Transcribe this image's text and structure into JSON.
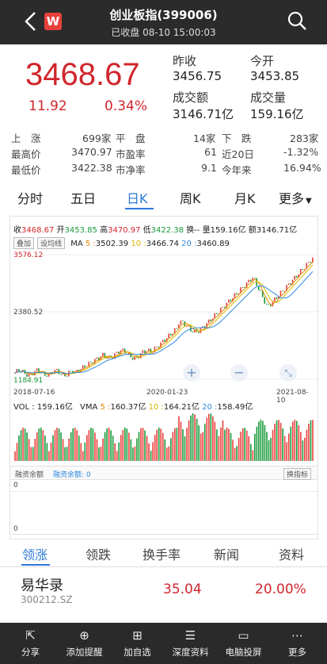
{
  "header": {
    "title": "创业板指(399006)",
    "status": "已收盘 08-10 15:00:03",
    "logo_letter": "W",
    "back_icon": "chevron-left-icon",
    "search_icon": "search-icon"
  },
  "quote": {
    "price": "3468.67",
    "change": "11.92",
    "change_pct": "0.34%",
    "prev_close_label": "昨收",
    "prev_close": "3456.75",
    "open_label": "今开",
    "open": "3453.85",
    "turnover_label": "成交额",
    "turnover": "3146.71亿",
    "volume_label": "成交量",
    "volume": "159.16亿"
  },
  "stats": {
    "up_label": "上　涨",
    "up": "699家",
    "flat_label": "平　盘",
    "flat": "14家",
    "down_label": "下　跌",
    "down": "283家",
    "high_label": "最高价",
    "high": "3470.97",
    "pe_label": "市盈率",
    "pe": "61",
    "d20_label": "近20日",
    "d20": "-1.32%",
    "low_label": "最低价",
    "low": "3422.38",
    "pb_label": "市净率",
    "pb": "9.1",
    "ytd_label": "今年来",
    "ytd": "16.94%"
  },
  "tabs": [
    "分时",
    "五日",
    "日K",
    "周K",
    "月K",
    "更多"
  ],
  "chart_info": {
    "close_label": "收",
    "close": "3468.67",
    "open_label": "开",
    "open": "3453.85",
    "high_label": "高",
    "high": "3470.97",
    "low_label": "低",
    "low": "3422.38",
    "change_label": "换--",
    "volume_label": "量",
    "volume": "159.16亿",
    "amount_label": "额",
    "amount": "3146.71亿",
    "overlay_btn": "叠加",
    "ma_btn": "设均线",
    "ma_label": "MA",
    "ma5_label": "5 :",
    "ma5": "3502.39",
    "ma10_label": "10 :",
    "ma10": "3466.74",
    "ma20_label": "20 :",
    "ma20": "3460.89",
    "y_max": "3576.12",
    "y_mid": "2380.52",
    "y_min": "1184.91",
    "x_start": "2018-07-16",
    "x_mid": "2020-01-23",
    "x_end": "2021-08-10",
    "vol_label": "VOL :",
    "vol": "159.16亿",
    "vma_label": "VMA",
    "vma5_label": "5 :",
    "vma5": "160.37亿",
    "vma10_label": "10 :",
    "vma10": "164.21亿",
    "vma20_label": "20 :",
    "vma20": "158.49亿",
    "margin_tab1": "融资余额",
    "margin_tab2": "融资余额: 0",
    "switch_btn": "换指标",
    "margin_y1": "0",
    "margin_y2": "0",
    "colors": {
      "up": "#e8413c",
      "down": "#1a9a3b",
      "ma5": "#e08a00",
      "ma10": "#d8b800",
      "ma20": "#2f8ae0"
    }
  },
  "subtabs": [
    "领涨",
    "领跌",
    "换手率",
    "新闻",
    "资料"
  ],
  "stocks": [
    {
      "name": "易华录",
      "code": "300212.SZ",
      "price": "35.04",
      "pct": "20.00%"
    }
  ],
  "bottom": [
    {
      "label": "分享",
      "icon": "share-icon"
    },
    {
      "label": "添加提醒",
      "icon": "bell-icon"
    },
    {
      "label": "加自选",
      "icon": "plus-box-icon"
    },
    {
      "label": "深度资料",
      "icon": "database-icon"
    },
    {
      "label": "电脑投屏",
      "icon": "monitor-icon"
    },
    {
      "label": "更多",
      "icon": "more-icon"
    }
  ]
}
